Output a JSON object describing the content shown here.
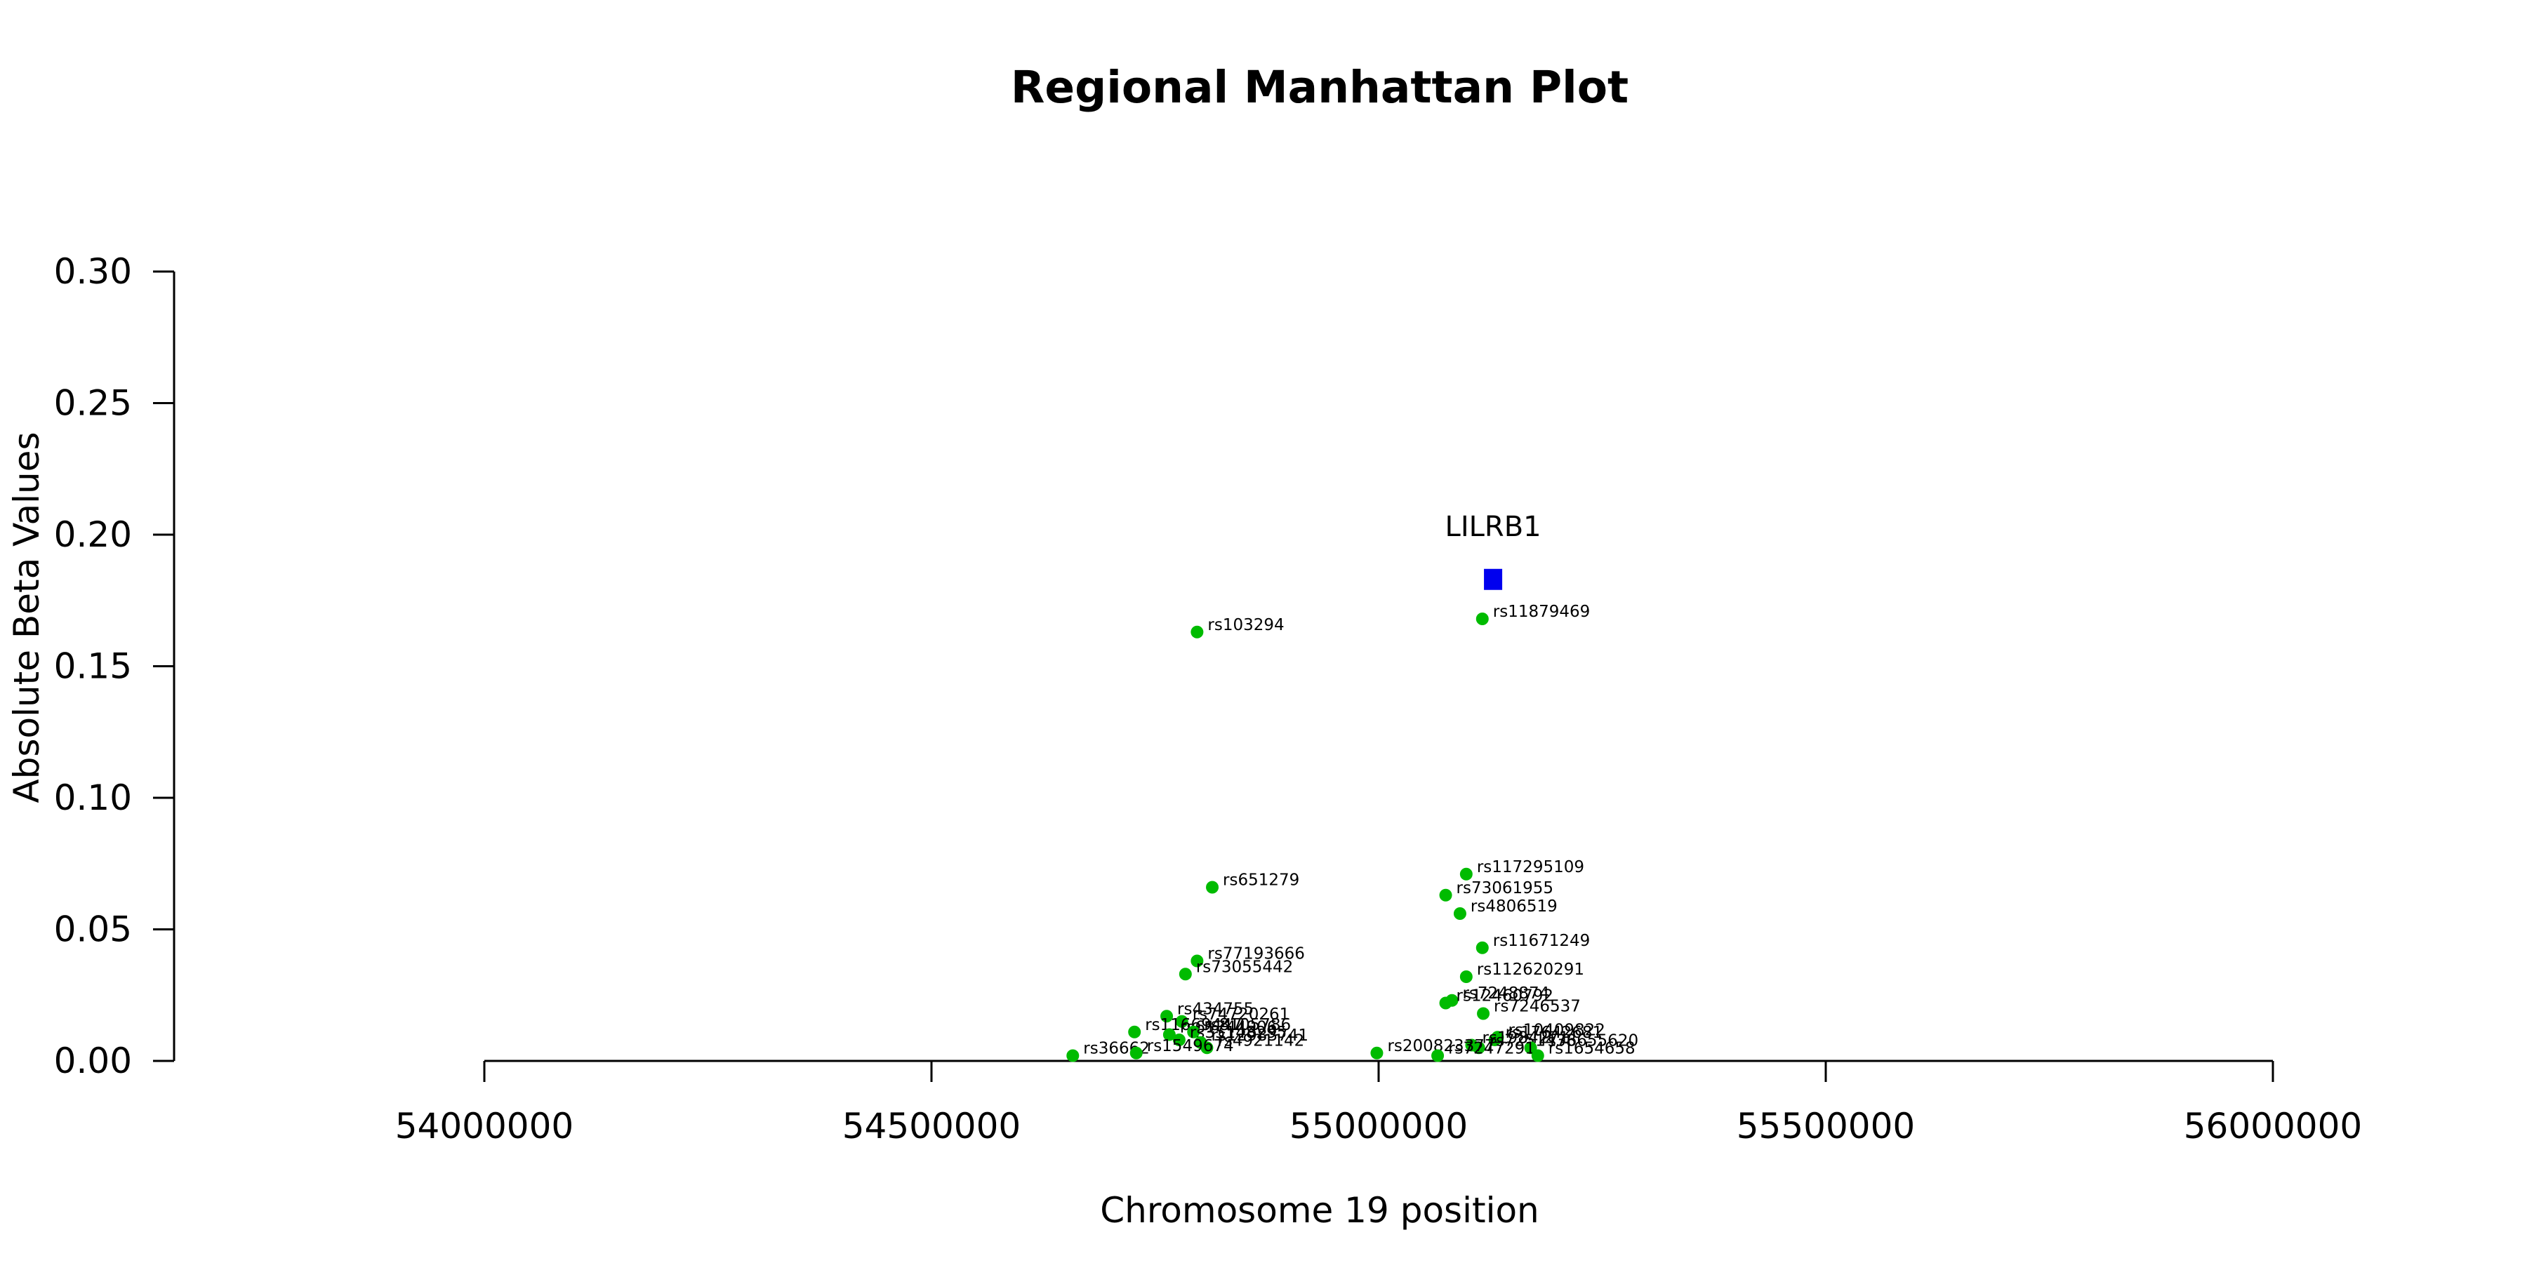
{
  "chart_data": {
    "type": "scatter",
    "title": "Regional Manhattan Plot",
    "xlabel": "Chromosome 19 position",
    "ylabel": "Absolute Beta Values",
    "xlim": [
      54000000,
      56000000
    ],
    "ylim": [
      0,
      0.3
    ],
    "x_ticks": [
      54000000,
      54500000,
      55000000,
      55500000,
      56000000
    ],
    "x_tick_labels": [
      "54000000",
      "54500000",
      "55000000",
      "55500000",
      "56000000"
    ],
    "y_ticks": [
      0,
      0.05,
      0.1,
      0.15,
      0.2,
      0.25,
      0.3
    ],
    "y_tick_labels": [
      "0.00",
      "0.05",
      "0.10",
      "0.15",
      "0.20",
      "0.25",
      "0.30"
    ],
    "grid": false,
    "colors": {
      "snp": "#00bb00",
      "gene": "#0000ee"
    },
    "gene_marker": {
      "label": "LILRB1",
      "x": 55128000,
      "y": 0.183
    },
    "points": [
      {
        "label": "rs103294",
        "x": 54797000,
        "y": 0.163
      },
      {
        "label": "rs11879469",
        "x": 55116000,
        "y": 0.168
      },
      {
        "label": "rs651279",
        "x": 54814000,
        "y": 0.066
      },
      {
        "label": "rs117295109",
        "x": 55098000,
        "y": 0.071
      },
      {
        "label": "rs73061955",
        "x": 55075000,
        "y": 0.063
      },
      {
        "label": "rs4806519",
        "x": 55091000,
        "y": 0.056
      },
      {
        "label": "rs11671249",
        "x": 55116000,
        "y": 0.043
      },
      {
        "label": "rs77193666",
        "x": 54797000,
        "y": 0.038
      },
      {
        "label": "rs73055442",
        "x": 54784000,
        "y": 0.033
      },
      {
        "label": "rs112620291",
        "x": 55098000,
        "y": 0.032
      },
      {
        "label": "rs7248874",
        "x": 55082000,
        "y": 0.023
      },
      {
        "label": "rs12460792",
        "x": 55075000,
        "y": 0.022
      },
      {
        "label": "rs7246537",
        "x": 55117000,
        "y": 0.018
      },
      {
        "label": "rs434755",
        "x": 54763000,
        "y": 0.017
      },
      {
        "label": "rs74720261",
        "x": 54780000,
        "y": 0.015
      },
      {
        "label": "rs11669447",
        "x": 54727000,
        "y": 0.011
      },
      {
        "label": "rs61744906",
        "x": 54766000,
        "y": 0.01
      },
      {
        "label": "rs8105786",
        "x": 54793000,
        "y": 0.011
      },
      {
        "label": "rs35148295",
        "x": 54777000,
        "y": 0.008
      },
      {
        "label": "rs10409822",
        "x": 55133000,
        "y": 0.009
      },
      {
        "label": "rs17642681",
        "x": 55130000,
        "y": 0.008
      },
      {
        "label": "rs12983741",
        "x": 54801000,
        "y": 0.007
      },
      {
        "label": "rs1984271",
        "x": 55104000,
        "y": 0.006
      },
      {
        "label": "rs7251438",
        "x": 55112000,
        "y": 0.005
      },
      {
        "label": "rs76655620",
        "x": 55170000,
        "y": 0.005
      },
      {
        "label": "rs4921142",
        "x": 54808000,
        "y": 0.005
      },
      {
        "label": "rs200823377",
        "x": 54998000,
        "y": 0.003
      },
      {
        "label": "rs7247291",
        "x": 55066000,
        "y": 0.002
      },
      {
        "label": "rs1654658",
        "x": 55178000,
        "y": 0.002
      },
      {
        "label": "rs36662",
        "x": 54658000,
        "y": 0.002
      },
      {
        "label": "rs1549674",
        "x": 54729000,
        "y": 0.003
      }
    ]
  }
}
